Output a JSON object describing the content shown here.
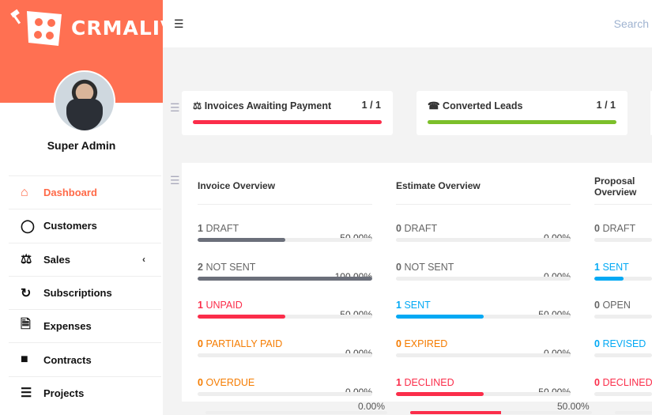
{
  "brand": {
    "name": "CRMALIVE",
    "color": "#ff7052"
  },
  "user": {
    "name": "Super Admin"
  },
  "sidebar": {
    "items": [
      {
        "label": "Dashboard",
        "icon": "home-icon",
        "active": true
      },
      {
        "label": "Customers",
        "icon": "user-icon"
      },
      {
        "label": "Sales",
        "icon": "balance-scale-icon",
        "has_submenu": true
      },
      {
        "label": "Subscriptions",
        "icon": "refresh-icon"
      },
      {
        "label": "Expenses",
        "icon": "file-text-icon"
      },
      {
        "label": "Contracts",
        "icon": "file-icon"
      },
      {
        "label": "Projects",
        "icon": "bars-icon"
      }
    ]
  },
  "topbar": {
    "search_placeholder": "Search"
  },
  "cards": [
    {
      "title": "Invoices Awaiting Payment",
      "value": "1 / 1",
      "icon": "balance-scale-icon",
      "color": "#fb2d4a",
      "progress": 100
    },
    {
      "title": "Converted Leads",
      "value": "1 / 1",
      "icon": "tty-icon",
      "color": "#7cbf2a",
      "progress": 100
    }
  ],
  "overview": [
    {
      "title": "Invoice Overview",
      "rows": [
        {
          "count": "1",
          "label": "DRAFT",
          "pct": "50.00%",
          "value": 50,
          "color": "#6b6f7a",
          "text_color": "#666"
        },
        {
          "count": "2",
          "label": "NOT SENT",
          "pct": "100.00%",
          "value": 100,
          "color": "#6b6f7a",
          "text_color": "#666"
        },
        {
          "count": "1",
          "label": "UNPAID",
          "pct": "50.00%",
          "value": 50,
          "color": "#fb2d4a",
          "text_color": "#fb2d4a"
        },
        {
          "count": "0",
          "label": "PARTIALLY PAID",
          "pct": "0.00%",
          "value": 0,
          "color": "#f57c00",
          "text_color": "#f57c00"
        },
        {
          "count": "0",
          "label": "OVERDUE",
          "pct": "0.00%",
          "value": 0,
          "color": "#f57c00",
          "text_color": "#f57c00"
        }
      ]
    },
    {
      "title": "Estimate Overview",
      "rows": [
        {
          "count": "0",
          "label": "DRAFT",
          "pct": "0.00%",
          "value": 0,
          "color": "#6b6f7a",
          "text_color": "#666"
        },
        {
          "count": "0",
          "label": "NOT SENT",
          "pct": "0.00%",
          "value": 0,
          "color": "#6b6f7a",
          "text_color": "#666"
        },
        {
          "count": "1",
          "label": "SENT",
          "pct": "50.00%",
          "value": 50,
          "color": "#03a9f4",
          "text_color": "#03a9f4"
        },
        {
          "count": "0",
          "label": "EXPIRED",
          "pct": "0.00%",
          "value": 0,
          "color": "#f57c00",
          "text_color": "#f57c00"
        },
        {
          "count": "1",
          "label": "DECLINED",
          "pct": "50.00%",
          "value": 50,
          "color": "#fb2d4a",
          "text_color": "#fb2d4a"
        }
      ]
    },
    {
      "title": "Proposal Overview",
      "rows": [
        {
          "count": "0",
          "label": "DRAFT",
          "pct": "",
          "value": 0,
          "color": "#6b6f7a",
          "text_color": "#666"
        },
        {
          "count": "1",
          "label": "SENT",
          "pct": "",
          "value": 50,
          "color": "#03a9f4",
          "text_color": "#03a9f4"
        },
        {
          "count": "0",
          "label": "OPEN",
          "pct": "",
          "value": 0,
          "color": "#6b6f7a",
          "text_color": "#666"
        },
        {
          "count": "0",
          "label": "REVISED",
          "pct": "",
          "value": 0,
          "color": "#03a9f4",
          "text_color": "#03a9f4"
        },
        {
          "count": "0",
          "label": "DECLINED",
          "pct": "",
          "value": 0,
          "color": "#fb2d4a",
          "text_color": "#fb2d4a"
        }
      ]
    }
  ],
  "ghost": {
    "invoice_pct": "0.00%",
    "estimate_pct": "50.00%"
  }
}
